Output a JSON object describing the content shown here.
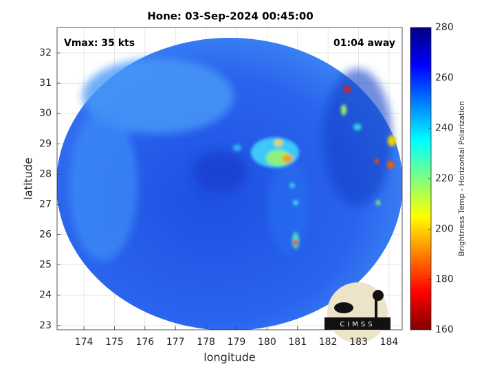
{
  "chart_data": {
    "type": "image",
    "title": "Hone: 03-Sep-2024 00:45:00",
    "annotations": {
      "left": "Vmax: 35 kts",
      "right": "01:04 away"
    },
    "xlabel": "longitude",
    "ylabel": "latitude",
    "xlim": [
      173.12,
      184.43
    ],
    "ylim": [
      22.86,
      32.84
    ],
    "xticks": [
      174,
      175,
      176,
      177,
      178,
      179,
      180,
      181,
      182,
      183,
      184
    ],
    "yticks": [
      23,
      24,
      25,
      26,
      27,
      28,
      29,
      30,
      31,
      32
    ],
    "grid": true,
    "colorbar": {
      "label": "Brightness Temp - Horizontal Polarization",
      "clim": [
        160,
        280
      ],
      "ticks": [
        160,
        180,
        200,
        220,
        240,
        260,
        280
      ],
      "colors": [
        "#7f0000",
        "#ff0000",
        "#ff7f00",
        "#ffff00",
        "#7fff7f",
        "#00ffff",
        "#007fff",
        "#0000ff",
        "#00007f"
      ]
    },
    "logo": "CIMSS"
  }
}
